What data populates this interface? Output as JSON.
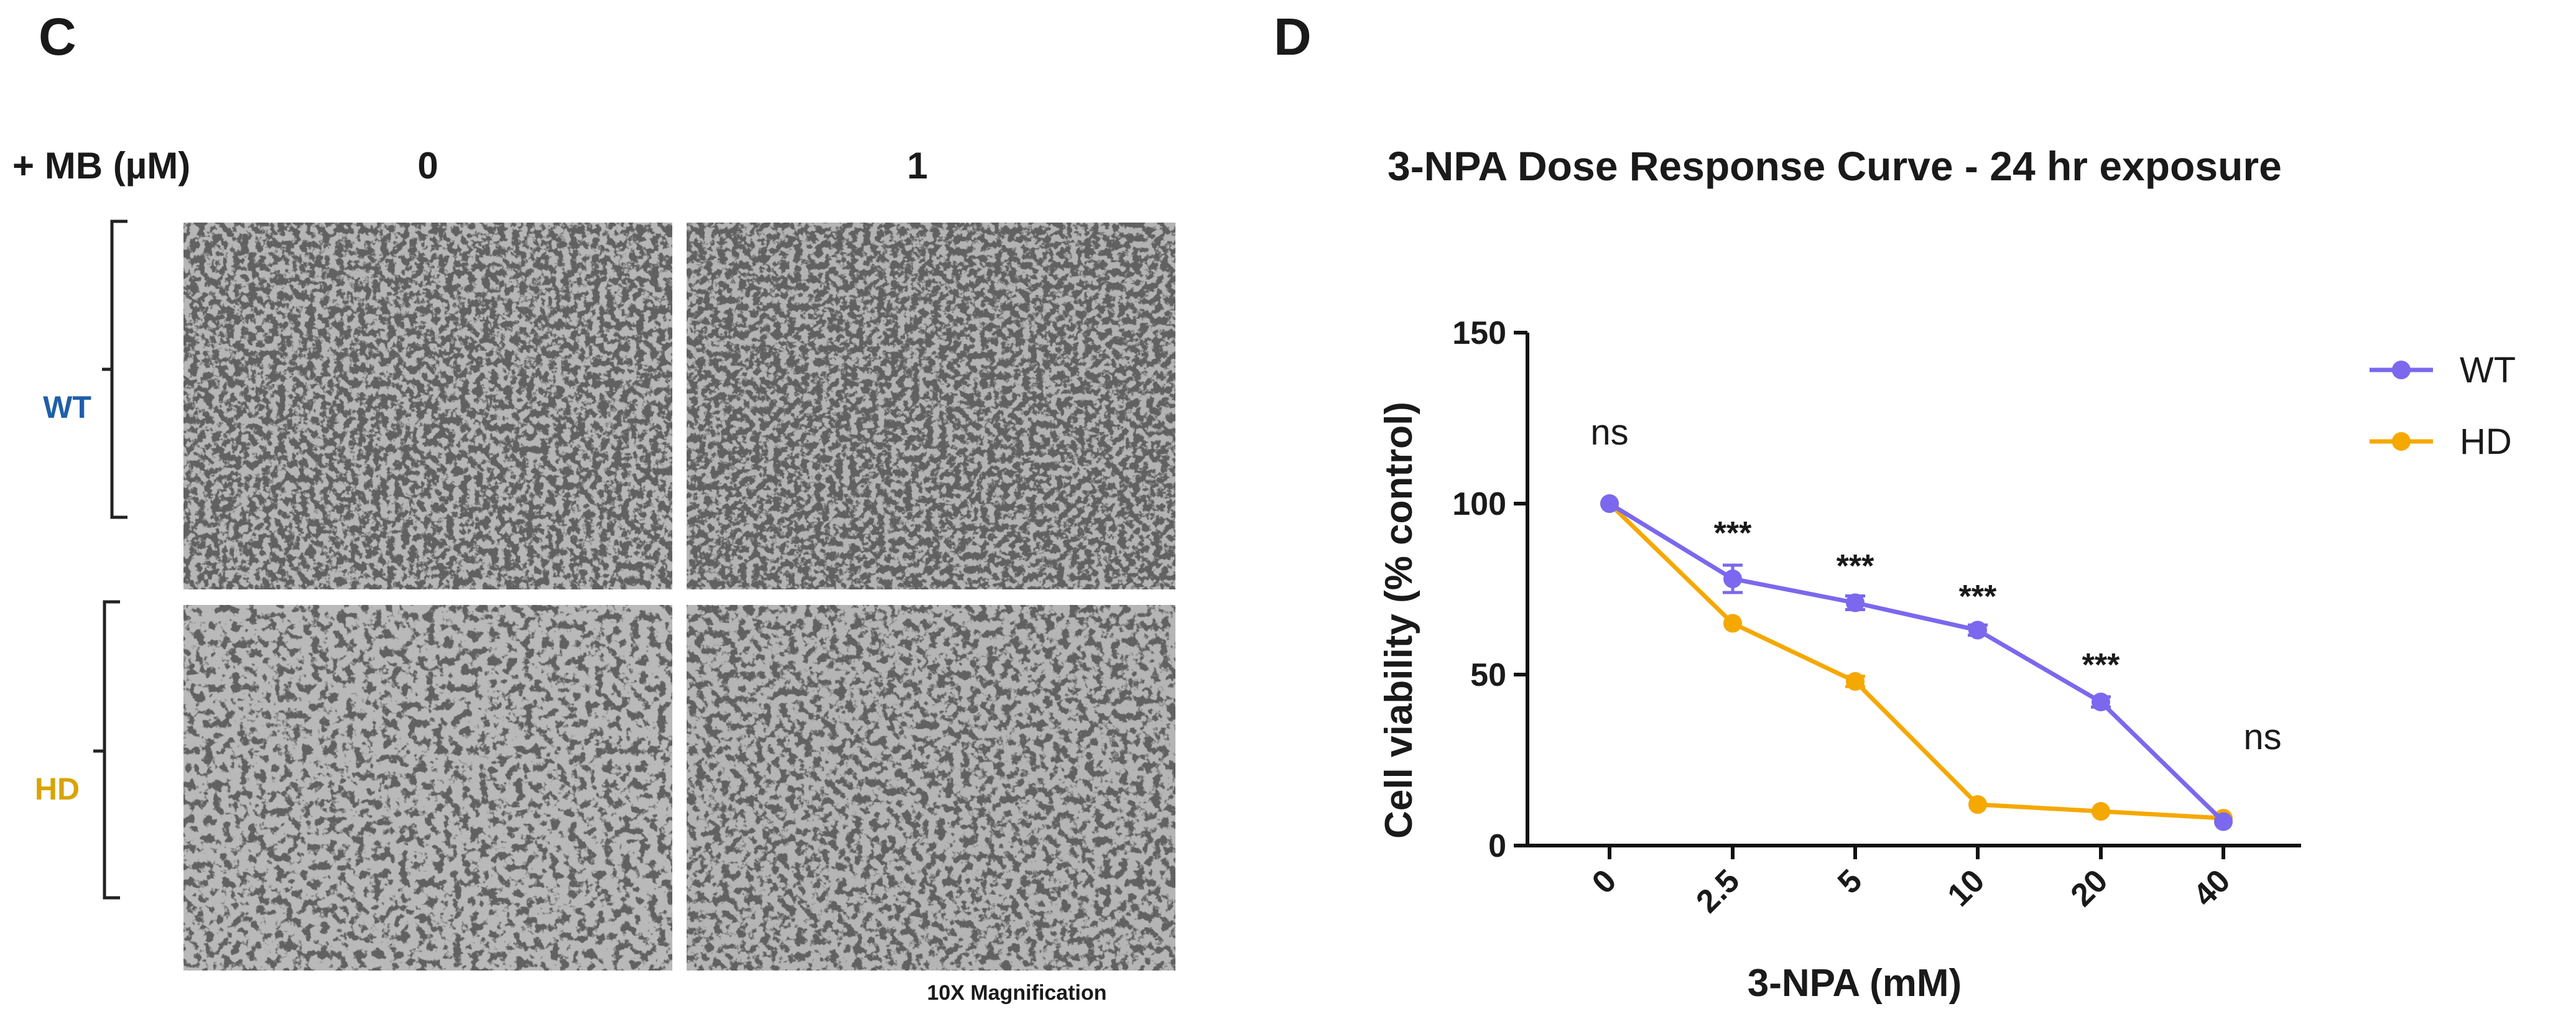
{
  "panel_c": {
    "letter": "C",
    "treatment_label": "+ MB (µM)",
    "columns": [
      "0",
      "1"
    ],
    "rows": [
      {
        "label": "WT",
        "color": "#1f5fa8"
      },
      {
        "label": "HD",
        "color": "#d9a400"
      }
    ],
    "magnification": "10X Magnification"
  },
  "panel_d": {
    "letter": "D"
  },
  "chart_data": {
    "type": "line",
    "title": "3-NPA Dose Response Curve - 24 hr exposure",
    "xlabel": "3-NPA (mM)",
    "ylabel": "Cell viability (% control)",
    "categories": [
      "0",
      "2.5",
      "5",
      "10",
      "20",
      "40"
    ],
    "ylim": [
      0,
      150
    ],
    "yticks": [
      0,
      50,
      100,
      150
    ],
    "grid": false,
    "legend_position": "top-right",
    "series": [
      {
        "name": "WT",
        "color": "#7b68ee",
        "values": [
          100,
          78,
          71,
          63,
          42,
          7
        ],
        "errors": [
          1,
          4,
          2,
          1.5,
          1.5,
          1
        ]
      },
      {
        "name": "HD",
        "color": "#f5a800",
        "values": [
          100,
          65,
          48,
          12,
          10,
          8
        ],
        "errors": [
          1,
          1,
          1.5,
          1,
          1,
          1
        ]
      }
    ],
    "annotations": [
      {
        "category": "0",
        "text": "ns"
      },
      {
        "category": "2.5",
        "text": "***"
      },
      {
        "category": "5",
        "text": "***"
      },
      {
        "category": "10",
        "text": "***"
      },
      {
        "category": "20",
        "text": "***"
      },
      {
        "category": "40",
        "text": "ns"
      }
    ]
  }
}
